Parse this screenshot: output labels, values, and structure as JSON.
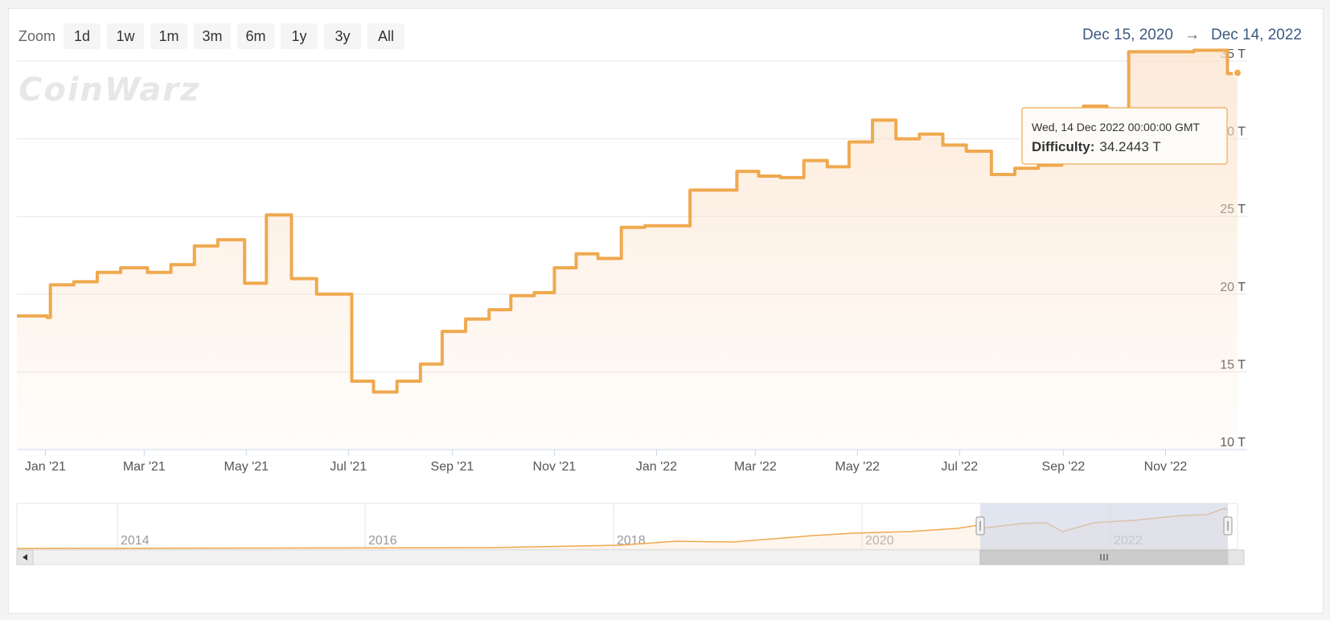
{
  "zoom": {
    "label": "Zoom",
    "buttons": [
      "1d",
      "1w",
      "1m",
      "3m",
      "6m",
      "1y",
      "3y",
      "All"
    ]
  },
  "range": {
    "from": "Dec 15, 2020",
    "arrow": "→",
    "to": "Dec 14, 2022"
  },
  "watermark": "CoinWarz",
  "tooltip": {
    "date": "Wed, 14 Dec 2022 00:00:00 GMT",
    "series_label": "Difficulty:",
    "value": "34.2443 T"
  },
  "navigator": {
    "year_labels": [
      "2014",
      "2016",
      "2018",
      "2020",
      "2022"
    ]
  },
  "colors": {
    "line": "#efa94f",
    "fill_top": "#fbe3cc",
    "navigator_mask": "#cdd4e6"
  },
  "chart_data": {
    "type": "area",
    "ylabel": "",
    "ylim": [
      10,
      35
    ],
    "yticks": [
      {
        "v": 10,
        "label": "10 T"
      },
      {
        "v": 15,
        "label": "15 T"
      },
      {
        "v": 20,
        "label": "20 T"
      },
      {
        "v": 25,
        "label": "25 T"
      },
      {
        "v": 30,
        "label": "30 T"
      },
      {
        "v": 35,
        "label": "35 T"
      }
    ],
    "xlim": [
      "2020-12-15",
      "2022-12-14"
    ],
    "xticks": [
      {
        "date": "2021-01-01",
        "label": "Jan '21"
      },
      {
        "date": "2021-03-01",
        "label": "Mar '21"
      },
      {
        "date": "2021-05-01",
        "label": "May '21"
      },
      {
        "date": "2021-07-01",
        "label": "Jul '21"
      },
      {
        "date": "2021-09-01",
        "label": "Sep '21"
      },
      {
        "date": "2021-11-01",
        "label": "Nov '21"
      },
      {
        "date": "2022-01-01",
        "label": "Jan '22"
      },
      {
        "date": "2022-03-01",
        "label": "Mar '22"
      },
      {
        "date": "2022-05-01",
        "label": "May '22"
      },
      {
        "date": "2022-07-01",
        "label": "Jul '22"
      },
      {
        "date": "2022-09-01",
        "label": "Sep '22"
      },
      {
        "date": "2022-11-01",
        "label": "Nov '22"
      }
    ],
    "series": [
      {
        "name": "Difficulty",
        "unit": "T",
        "points": [
          [
            "2020-12-15",
            18.6
          ],
          [
            "2021-01-02",
            18.5
          ],
          [
            "2021-01-04",
            20.6
          ],
          [
            "2021-01-18",
            20.8
          ],
          [
            "2021-02-01",
            21.4
          ],
          [
            "2021-02-15",
            21.7
          ],
          [
            "2021-03-03",
            21.4
          ],
          [
            "2021-03-17",
            21.9
          ],
          [
            "2021-03-31",
            23.1
          ],
          [
            "2021-04-14",
            23.5
          ],
          [
            "2021-04-30",
            20.7
          ],
          [
            "2021-05-13",
            25.1
          ],
          [
            "2021-05-28",
            21.0
          ],
          [
            "2021-06-12",
            20.0
          ],
          [
            "2021-07-03",
            14.4
          ],
          [
            "2021-07-16",
            13.7
          ],
          [
            "2021-07-30",
            14.4
          ],
          [
            "2021-08-13",
            15.5
          ],
          [
            "2021-08-26",
            17.6
          ],
          [
            "2021-09-09",
            18.4
          ],
          [
            "2021-09-23",
            19.0
          ],
          [
            "2021-10-06",
            19.9
          ],
          [
            "2021-10-20",
            20.1
          ],
          [
            "2021-11-01",
            21.7
          ],
          [
            "2021-11-14",
            22.6
          ],
          [
            "2021-11-27",
            22.3
          ],
          [
            "2021-12-11",
            24.3
          ],
          [
            "2021-12-25",
            24.4
          ],
          [
            "2022-01-08",
            24.4
          ],
          [
            "2022-01-21",
            26.7
          ],
          [
            "2022-02-04",
            26.7
          ],
          [
            "2022-02-18",
            27.9
          ],
          [
            "2022-03-03",
            27.6
          ],
          [
            "2022-03-16",
            27.5
          ],
          [
            "2022-03-30",
            28.6
          ],
          [
            "2022-04-13",
            28.2
          ],
          [
            "2022-04-26",
            29.8
          ],
          [
            "2022-05-10",
            31.2
          ],
          [
            "2022-05-24",
            30.0
          ],
          [
            "2022-06-07",
            30.3
          ],
          [
            "2022-06-21",
            29.6
          ],
          [
            "2022-07-05",
            29.2
          ],
          [
            "2022-07-20",
            27.7
          ],
          [
            "2022-08-03",
            28.1
          ],
          [
            "2022-08-17",
            28.3
          ],
          [
            "2022-08-31",
            30.9
          ],
          [
            "2022-09-13",
            32.1
          ],
          [
            "2022-09-27",
            31.3
          ],
          [
            "2022-10-10",
            35.6
          ],
          [
            "2022-10-24",
            35.6
          ],
          [
            "2022-11-06",
            35.6
          ],
          [
            "2022-11-18",
            35.7
          ],
          [
            "2022-12-06",
            35.7
          ],
          [
            "2022-12-08",
            34.2
          ],
          [
            "2022-12-14",
            34.2443
          ]
        ]
      }
    ]
  }
}
